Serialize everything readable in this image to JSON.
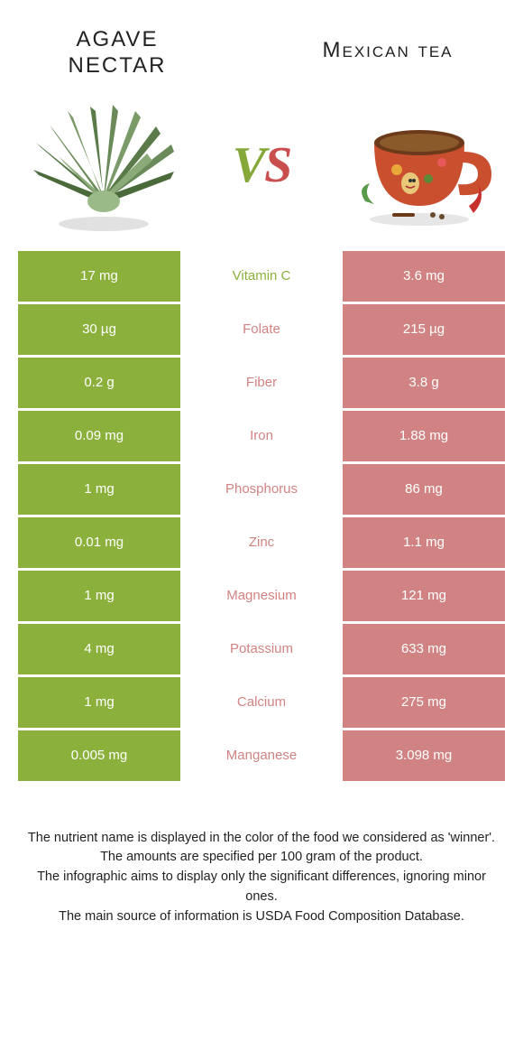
{
  "colors": {
    "left": "#8bb13c",
    "right": "#d18383",
    "left_text": "#8bb13c",
    "right_text": "#d18383"
  },
  "header": {
    "left_title_line1": "Agave",
    "left_title_line2": "nectar",
    "right_title": "Mexican tea",
    "vs_v": "V",
    "vs_s": "S"
  },
  "rows": [
    {
      "left": "17 mg",
      "label": "Vitamin C",
      "right": "3.6 mg",
      "winner": "left"
    },
    {
      "left": "30 µg",
      "label": "Folate",
      "right": "215 µg",
      "winner": "right"
    },
    {
      "left": "0.2 g",
      "label": "Fiber",
      "right": "3.8 g",
      "winner": "right"
    },
    {
      "left": "0.09 mg",
      "label": "Iron",
      "right": "1.88 mg",
      "winner": "right"
    },
    {
      "left": "1 mg",
      "label": "Phosphorus",
      "right": "86 mg",
      "winner": "right"
    },
    {
      "left": "0.01 mg",
      "label": "Zinc",
      "right": "1.1 mg",
      "winner": "right"
    },
    {
      "left": "1 mg",
      "label": "Magnesium",
      "right": "121 mg",
      "winner": "right"
    },
    {
      "left": "4 mg",
      "label": "Potassium",
      "right": "633 mg",
      "winner": "right"
    },
    {
      "left": "1 mg",
      "label": "Calcium",
      "right": "275 mg",
      "winner": "right"
    },
    {
      "left": "0.005 mg",
      "label": "Manganese",
      "right": "3.098 mg",
      "winner": "right"
    }
  ],
  "footer": {
    "line1": "The nutrient name is displayed in the color of the food we considered as 'winner'.",
    "line2": "The amounts are specified per 100 gram of the product.",
    "line3": "The infographic aims to display only the significant differences, ignoring minor ones.",
    "line4": "The main source of information is USDA Food Composition Database."
  }
}
